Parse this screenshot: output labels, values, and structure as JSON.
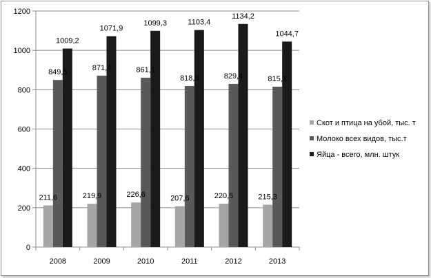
{
  "chart_data": {
    "type": "bar",
    "title": "",
    "xlabel": "",
    "ylabel": "",
    "categories": [
      "2008",
      "2009",
      "2010",
      "2011",
      "2012",
      "2013"
    ],
    "series": [
      {
        "name": "Скот и птица на убой, тыс. т",
        "color": "#a6a6a6",
        "values": [
          211.6,
          219.9,
          226.6,
          207.6,
          220.5,
          215.3
        ],
        "labels": [
          "211,6",
          "219,9",
          "226,6",
          "207,6",
          "220,5",
          "215,3"
        ]
      },
      {
        "name": "Молоко всех видов, тыс.т",
        "color": "#595959",
        "values": [
          849.5,
          871.4,
          861.1,
          818.8,
          829.4,
          815.3
        ],
        "labels": [
          "849,5",
          "871,4",
          "861,1",
          "818,8",
          "829,4",
          "815,3"
        ]
      },
      {
        "name": "Яйца - всего, млн. штук",
        "color": "#1a1a1a",
        "values": [
          1009.2,
          1071.9,
          1099.3,
          1103.4,
          1134.2,
          1044.7
        ],
        "labels": [
          "1009,2",
          "1071,9",
          "1099,3",
          "1103,4",
          "1134,2",
          "1044,7"
        ]
      }
    ],
    "ylim": [
      0,
      1200
    ],
    "yticks": [
      "0",
      "200",
      "400",
      "600",
      "800",
      "1000",
      "1200"
    ],
    "ytick_values": [
      0,
      200,
      400,
      600,
      800,
      1000,
      1200
    ],
    "grid": "horizontal",
    "legend_position": "right"
  }
}
